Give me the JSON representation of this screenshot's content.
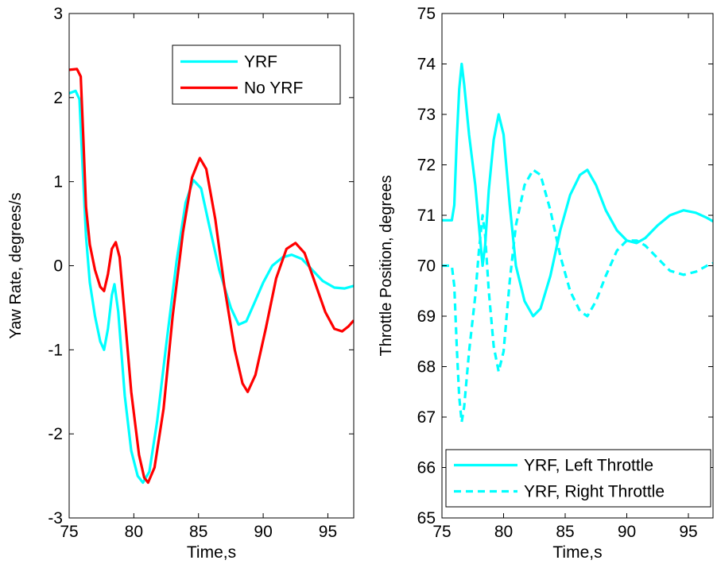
{
  "chart_data": [
    {
      "type": "line",
      "title": "",
      "xlabel": "Time,s",
      "ylabel": "Yaw Rate, degrees/s",
      "xlim": [
        75,
        97
      ],
      "ylim": [
        -3,
        3
      ],
      "xticks": [
        75,
        80,
        85,
        90,
        95
      ],
      "yticks": [
        -3,
        -2,
        -1,
        0,
        1,
        2,
        3
      ],
      "grid": false,
      "legend_position": "top-right",
      "series": [
        {
          "name": "YRF",
          "color": "#00ffff",
          "style": "solid",
          "points": [
            [
              75,
              2.05
            ],
            [
              75.5,
              2.08
            ],
            [
              75.8,
              1.98
            ],
            [
              76.0,
              1.3
            ],
            [
              76.3,
              0.35
            ],
            [
              76.6,
              -0.2
            ],
            [
              77.0,
              -0.6
            ],
            [
              77.4,
              -0.9
            ],
            [
              77.7,
              -1.0
            ],
            [
              78.0,
              -0.75
            ],
            [
              78.3,
              -0.35
            ],
            [
              78.5,
              -0.22
            ],
            [
              78.8,
              -0.55
            ],
            [
              79.3,
              -1.55
            ],
            [
              79.8,
              -2.2
            ],
            [
              80.3,
              -2.5
            ],
            [
              80.7,
              -2.58
            ],
            [
              81.2,
              -2.45
            ],
            [
              81.8,
              -1.85
            ],
            [
              82.5,
              -0.95
            ],
            [
              83.3,
              0.05
            ],
            [
              84.0,
              0.75
            ],
            [
              84.6,
              1.02
            ],
            [
              85.2,
              0.92
            ],
            [
              85.8,
              0.5
            ],
            [
              86.6,
              -0.05
            ],
            [
              87.5,
              -0.5
            ],
            [
              88.1,
              -0.7
            ],
            [
              88.7,
              -0.66
            ],
            [
              89.3,
              -0.45
            ],
            [
              90.0,
              -0.2
            ],
            [
              90.7,
              0.0
            ],
            [
              91.5,
              0.1
            ],
            [
              92.2,
              0.13
            ],
            [
              93.0,
              0.08
            ],
            [
              93.8,
              -0.05
            ],
            [
              94.6,
              -0.18
            ],
            [
              95.5,
              -0.26
            ],
            [
              96.3,
              -0.27
            ],
            [
              97,
              -0.24
            ]
          ]
        },
        {
          "name": "No YRF",
          "color": "#ff0000",
          "style": "solid",
          "points": [
            [
              75,
              2.33
            ],
            [
              75.6,
              2.34
            ],
            [
              75.9,
              2.25
            ],
            [
              76.1,
              1.5
            ],
            [
              76.3,
              0.7
            ],
            [
              76.6,
              0.25
            ],
            [
              77.0,
              -0.05
            ],
            [
              77.4,
              -0.25
            ],
            [
              77.7,
              -0.3
            ],
            [
              78.0,
              -0.1
            ],
            [
              78.3,
              0.2
            ],
            [
              78.6,
              0.28
            ],
            [
              78.9,
              0.1
            ],
            [
              79.3,
              -0.6
            ],
            [
              79.8,
              -1.5
            ],
            [
              80.4,
              -2.25
            ],
            [
              80.8,
              -2.52
            ],
            [
              81.1,
              -2.58
            ],
            [
              81.6,
              -2.4
            ],
            [
              82.3,
              -1.7
            ],
            [
              83.0,
              -0.6
            ],
            [
              83.8,
              0.4
            ],
            [
              84.5,
              1.05
            ],
            [
              85.1,
              1.28
            ],
            [
              85.6,
              1.15
            ],
            [
              86.3,
              0.55
            ],
            [
              87.0,
              -0.25
            ],
            [
              87.8,
              -1.0
            ],
            [
              88.4,
              -1.4
            ],
            [
              88.8,
              -1.5
            ],
            [
              89.4,
              -1.3
            ],
            [
              90.2,
              -0.75
            ],
            [
              91.0,
              -0.15
            ],
            [
              91.8,
              0.2
            ],
            [
              92.5,
              0.27
            ],
            [
              93.2,
              0.15
            ],
            [
              94.0,
              -0.2
            ],
            [
              94.8,
              -0.55
            ],
            [
              95.5,
              -0.75
            ],
            [
              96.1,
              -0.78
            ],
            [
              96.6,
              -0.72
            ],
            [
              97,
              -0.65
            ]
          ]
        }
      ]
    },
    {
      "type": "line",
      "title": "",
      "xlabel": "Time,s",
      "ylabel": "Throttle Position, degrees",
      "xlim": [
        75,
        97
      ],
      "ylim": [
        65,
        75
      ],
      "xticks": [
        75,
        80,
        85,
        90,
        95
      ],
      "yticks": [
        65,
        66,
        67,
        68,
        69,
        70,
        71,
        72,
        73,
        74,
        75
      ],
      "grid": false,
      "legend_position": "bottom-right",
      "series": [
        {
          "name": "YRF, Left Throttle",
          "color": "#00ffff",
          "style": "solid",
          "points": [
            [
              75,
              70.9
            ],
            [
              75.8,
              70.9
            ],
            [
              76.0,
              71.2
            ],
            [
              76.2,
              72.5
            ],
            [
              76.4,
              73.5
            ],
            [
              76.6,
              74.0
            ],
            [
              76.8,
              73.6
            ],
            [
              77.2,
              72.6
            ],
            [
              77.7,
              71.6
            ],
            [
              78.0,
              70.8
            ],
            [
              78.3,
              70.0
            ],
            [
              78.5,
              70.4
            ],
            [
              78.8,
              71.5
            ],
            [
              79.2,
              72.5
            ],
            [
              79.6,
              73.0
            ],
            [
              80.0,
              72.6
            ],
            [
              80.5,
              71.2
            ],
            [
              81.0,
              70.0
            ],
            [
              81.7,
              69.3
            ],
            [
              82.4,
              69.0
            ],
            [
              83.0,
              69.15
            ],
            [
              83.8,
              69.8
            ],
            [
              84.6,
              70.7
            ],
            [
              85.4,
              71.4
            ],
            [
              86.2,
              71.8
            ],
            [
              86.8,
              71.9
            ],
            [
              87.5,
              71.6
            ],
            [
              88.3,
              71.1
            ],
            [
              89.2,
              70.7
            ],
            [
              90.0,
              70.5
            ],
            [
              90.8,
              70.45
            ],
            [
              91.5,
              70.55
            ],
            [
              92.5,
              70.8
            ],
            [
              93.5,
              71.0
            ],
            [
              94.6,
              71.1
            ],
            [
              95.6,
              71.05
            ],
            [
              96.5,
              70.95
            ],
            [
              97,
              70.88
            ]
          ]
        },
        {
          "name": "YRF, Right Throttle",
          "color": "#00ffff",
          "style": "dashed",
          "points": [
            [
              75,
              70.0
            ],
            [
              75.8,
              70.0
            ],
            [
              76.0,
              69.6
            ],
            [
              76.2,
              68.4
            ],
            [
              76.4,
              67.4
            ],
            [
              76.6,
              66.9
            ],
            [
              76.8,
              67.2
            ],
            [
              77.2,
              68.3
            ],
            [
              77.7,
              69.4
            ],
            [
              78.0,
              70.3
            ],
            [
              78.3,
              71.0
            ],
            [
              78.5,
              70.6
            ],
            [
              78.8,
              69.5
            ],
            [
              79.2,
              68.4
            ],
            [
              79.6,
              67.9
            ],
            [
              80.0,
              68.3
            ],
            [
              80.5,
              69.7
            ],
            [
              81.0,
              70.8
            ],
            [
              81.7,
              71.6
            ],
            [
              82.4,
              71.9
            ],
            [
              83.0,
              71.8
            ],
            [
              83.8,
              71.1
            ],
            [
              84.6,
              70.2
            ],
            [
              85.4,
              69.5
            ],
            [
              86.2,
              69.1
            ],
            [
              86.8,
              69.0
            ],
            [
              87.5,
              69.3
            ],
            [
              88.3,
              69.8
            ],
            [
              89.2,
              70.3
            ],
            [
              90.0,
              70.5
            ],
            [
              90.8,
              70.5
            ],
            [
              91.5,
              70.4
            ],
            [
              92.5,
              70.15
            ],
            [
              93.5,
              69.9
            ],
            [
              94.6,
              69.82
            ],
            [
              95.6,
              69.88
            ],
            [
              96.5,
              70.0
            ],
            [
              97,
              70.05
            ]
          ]
        }
      ]
    }
  ]
}
